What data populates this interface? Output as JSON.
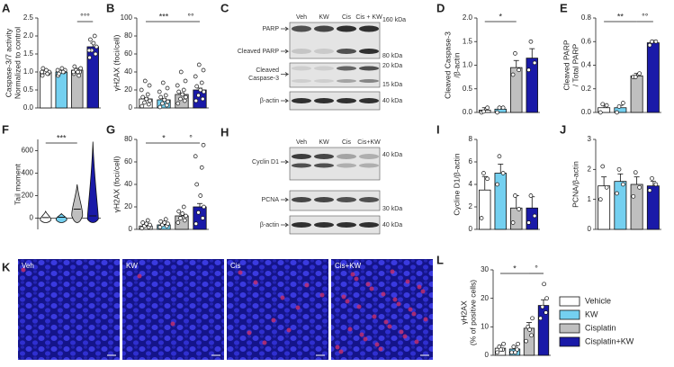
{
  "chart_data": [
    {
      "type": "bar",
      "label": "A",
      "ylabel": [
        "Caspase-3/7 activity",
        "Normalized to control"
      ],
      "categories": [
        null,
        null,
        null,
        null
      ],
      "values": [
        1.0,
        1.0,
        1.05,
        1.7
      ],
      "errors": [
        0.04,
        0.04,
        0.05,
        0.1
      ],
      "colors": [
        "#ffffff",
        "#74d0f0",
        "#bfbfbf",
        "#1a1aa8"
      ],
      "points": [
        [
          0.9,
          0.95,
          1.0,
          1.0,
          1.05,
          1.1,
          0.95,
          1.0
        ],
        [
          0.9,
          1.0,
          1.0,
          1.05,
          1.1,
          0.95,
          1.0,
          1.05
        ],
        [
          0.95,
          1.0,
          1.05,
          1.1,
          1.0,
          1.15,
          0.9,
          1.0
        ],
        [
          1.4,
          1.5,
          1.6,
          1.7,
          1.8,
          1.9,
          2.0,
          1.6
        ]
      ],
      "ylim": [
        0,
        2.5
      ],
      "yticks": [
        {
          "value": 0,
          "label": "0.0"
        },
        {
          "value": 0.5,
          "label": "0.5"
        },
        {
          "value": 1,
          "label": "1.0"
        },
        {
          "value": 1.5,
          "label": "1.5"
        },
        {
          "value": 2,
          "label": "2.0"
        },
        {
          "value": 2.5,
          "label": "2.5"
        }
      ],
      "brackets": [
        {
          "text": "°°°",
          "from": 2,
          "to": 3
        }
      ]
    },
    {
      "type": "bar",
      "label": "B",
      "ylabel": [
        "γH2AX (foci/cell)"
      ],
      "categories": [
        null,
        null,
        null,
        null
      ],
      "values": [
        10,
        9,
        15,
        20
      ],
      "errors": [
        1.5,
        1.5,
        1.5,
        2
      ],
      "colors": [
        "#ffffff",
        "#74d0f0",
        "#bfbfbf",
        "#1a1aa8"
      ],
      "points": [
        [
          2,
          4,
          6,
          8,
          10,
          12,
          15,
          20,
          25,
          30
        ],
        [
          1,
          3,
          5,
          7,
          9,
          12,
          14,
          18,
          22,
          28
        ],
        [
          5,
          8,
          10,
          12,
          15,
          18,
          20,
          25,
          30,
          40
        ],
        [
          8,
          10,
          14,
          18,
          20,
          24,
          28,
          35,
          42,
          48
        ]
      ],
      "ylim": [
        0,
        100
      ],
      "yticks": [
        0,
        20,
        40,
        60,
        80,
        100
      ],
      "brackets": [
        {
          "text": "***",
          "from": 0,
          "to": 2
        },
        {
          "text": "°°",
          "from": 2,
          "to": 3
        }
      ]
    },
    {
      "type": "bar",
      "label": "D",
      "ylabel": [
        "Cleaved Caspase-3",
        "/β-actin"
      ],
      "categories": [
        null,
        null,
        null,
        null
      ],
      "values": [
        0.05,
        0.07,
        0.95,
        1.15
      ],
      "errors": [
        0.05,
        0.05,
        0.15,
        0.2
      ],
      "colors": [
        "#ffffff",
        "#74d0f0",
        "#bfbfbf",
        "#1a1aa8"
      ],
      "points": [
        [
          0,
          0.1,
          0.02
        ],
        [
          0,
          0.1,
          0.1
        ],
        [
          0.8,
          0.9,
          1.25
        ],
        [
          0.9,
          1.05,
          1.5
        ]
      ],
      "ylim": [
        0,
        2
      ],
      "yticks": [
        {
          "value": 0,
          "label": "0.0"
        },
        {
          "value": 0.5,
          "label": "0.5"
        },
        {
          "value": 1,
          "label": "1.0"
        },
        {
          "value": 1.5,
          "label": "1.5"
        },
        {
          "value": 2,
          "label": "2.0"
        }
      ],
      "brackets": [
        {
          "text": "*",
          "from": 0,
          "to": 2
        }
      ]
    },
    {
      "type": "bar",
      "label": "E",
      "ylabel": [
        "Cleaved PARP",
        "/ Total PARP"
      ],
      "categories": [
        null,
        null,
        null,
        null
      ],
      "values": [
        0.04,
        0.04,
        0.31,
        0.59
      ],
      "errors": [
        0.02,
        0.02,
        0.02,
        0.02
      ],
      "colors": [
        "#ffffff",
        "#74d0f0",
        "#bfbfbf",
        "#1a1aa8"
      ],
      "points": [
        [
          0,
          0.06,
          0.07
        ],
        [
          0,
          0.08,
          0.05
        ],
        [
          0.3,
          0.33,
          0.3
        ],
        [
          0.57,
          0.6,
          0.6
        ]
      ],
      "ylim": [
        0,
        0.8
      ],
      "yticks": [
        {
          "value": 0,
          "label": "0.0"
        },
        {
          "value": 0.2,
          "label": "0.2"
        },
        {
          "value": 0.4,
          "label": "0.4"
        },
        {
          "value": 0.6,
          "label": "0.6"
        },
        {
          "value": 0.8,
          "label": "0.8"
        }
      ],
      "brackets": [
        {
          "text": "**",
          "from": 0,
          "to": 2
        },
        {
          "text": "°°",
          "from": 2,
          "to": 3
        }
      ]
    },
    {
      "type": "violin",
      "label": "F",
      "ylabel": [
        "Tail moment"
      ],
      "categories": [
        null,
        null,
        null,
        null
      ],
      "values": [
        5,
        8,
        80,
        20
      ],
      "max": [
        60,
        40,
        300,
        680
      ],
      "colors": [
        "#ffffff",
        "#74d0f0",
        "#bfbfbf",
        "#1a1aa8"
      ],
      "ylim": [
        -100,
        700
      ],
      "yticks": [
        0,
        200,
        400,
        600
      ],
      "brackets": [
        {
          "text": "***",
          "from": 0,
          "to": 2
        }
      ]
    },
    {
      "type": "bar",
      "label": "G",
      "ylabel": [
        "γH2AX (foci/cell)"
      ],
      "categories": [
        null,
        null,
        null,
        null
      ],
      "values": [
        3,
        4,
        12,
        20
      ],
      "errors": [
        1,
        1,
        1.5,
        3
      ],
      "colors": [
        "#ffffff",
        "#74d0f0",
        "#bfbfbf",
        "#1a1aa8"
      ],
      "points": [
        [
          1,
          2,
          3,
          4,
          5,
          6,
          8
        ],
        [
          2,
          3,
          4,
          5,
          6,
          7,
          9
        ],
        [
          6,
          8,
          10,
          12,
          14,
          16,
          20
        ],
        [
          5,
          10,
          15,
          20,
          30,
          40,
          55,
          65,
          75
        ]
      ],
      "ylim": [
        0,
        80
      ],
      "yticks": [
        0,
        20,
        40,
        60,
        80
      ],
      "brackets": [
        {
          "text": "*",
          "from": 0,
          "to": 2
        },
        {
          "text": "°",
          "from": 2,
          "to": 3
        }
      ]
    },
    {
      "type": "bar",
      "label": "I",
      "ylabel": [
        "Cycline D1/β-actin"
      ],
      "categories": [
        null,
        null,
        null,
        null
      ],
      "values": [
        3.5,
        5,
        1.9,
        1.9
      ],
      "errors": [
        1.2,
        0.8,
        1.1,
        1.0
      ],
      "colors": [
        "#ffffff",
        "#74d0f0",
        "#bfbfbf",
        "#1a1aa8"
      ],
      "points": [
        [
          1,
          4.5,
          5
        ],
        [
          4,
          5,
          6.5
        ],
        [
          0.6,
          1.8,
          3
        ],
        [
          0.6,
          1.2,
          3
        ]
      ],
      "ylim": [
        0,
        8
      ],
      "yticks": [
        0,
        2,
        4,
        6,
        8
      ],
      "brackets": []
    },
    {
      "type": "bar",
      "label": "J",
      "ylabel": [
        "PCNA/β-actin"
      ],
      "categories": [
        null,
        null,
        null,
        null
      ],
      "values": [
        1.45,
        1.6,
        1.5,
        1.45
      ],
      "errors": [
        0.3,
        0.25,
        0.25,
        0.15
      ],
      "colors": [
        "#ffffff",
        "#74d0f0",
        "#bfbfbf",
        "#1a1aa8"
      ],
      "points": [
        [
          1,
          1.4,
          2.1
        ],
        [
          1.2,
          1.5,
          2.0
        ],
        [
          1.1,
          1.4,
          1.9
        ],
        [
          1.3,
          1.5,
          1.7
        ]
      ],
      "ylim": [
        0,
        3
      ],
      "yticks": [
        0,
        1,
        2,
        3
      ],
      "brackets": []
    },
    {
      "type": "bar",
      "label": "L",
      "ylabel": [
        "γH2AX",
        "(% of positive cells)"
      ],
      "categories": [
        null,
        null,
        null,
        null
      ],
      "values": [
        2.5,
        2.2,
        9.5,
        17.5
      ],
      "errors": [
        1,
        1,
        2,
        2
      ],
      "colors": [
        "#ffffff",
        "#74d0f0",
        "#bfbfbf",
        "#1a1aa8"
      ],
      "points": [
        [
          1,
          2,
          3,
          4,
          2
        ],
        [
          1,
          2,
          3,
          4,
          1
        ],
        [
          5,
          7,
          10,
          13,
          9
        ],
        [
          13,
          15,
          17,
          20,
          25
        ]
      ],
      "ylim": [
        0,
        30
      ],
      "yticks": [
        0,
        10,
        20,
        30
      ],
      "brackets": [
        {
          "text": "*",
          "from": 0,
          "to": 2
        },
        {
          "text": "°",
          "from": 2,
          "to": 3
        }
      ]
    }
  ],
  "blots": [
    {
      "label": "C",
      "lanes": [
        "Veh",
        "KW",
        "Cis",
        "Cis + KW"
      ],
      "rows": [
        [
          "PARP"
        ],
        [
          "Cleaved PARP"
        ],
        [
          "Cleaved",
          "Caspase-3"
        ],
        [
          "β-actin"
        ]
      ],
      "markers": [
        "160 kDa",
        "80 kDa",
        "20 kDa",
        "15 kDa",
        "40 kDa"
      ]
    },
    {
      "label": "H",
      "lanes": [
        "Veh",
        "KW",
        "Cis",
        "Cis+KW"
      ],
      "rows": [
        [
          "Cyclin D1"
        ],
        [
          "PCNA"
        ],
        [
          "β-actin"
        ]
      ],
      "markers": [
        "40 kDa",
        "30 kDa",
        "40 kDa"
      ]
    }
  ],
  "images": {
    "label": "K",
    "panels": [
      "Veh",
      "KW",
      "Cis",
      "Cis+KW"
    ]
  },
  "legend": [
    {
      "name": "Vehicle",
      "color": "#ffffff"
    },
    {
      "name": "KW",
      "color": "#74d0f0"
    },
    {
      "name": "Cisplatin",
      "color": "#bfbfbf"
    },
    {
      "name": "Cisplatin+KW",
      "color": "#1a1aa8"
    }
  ]
}
